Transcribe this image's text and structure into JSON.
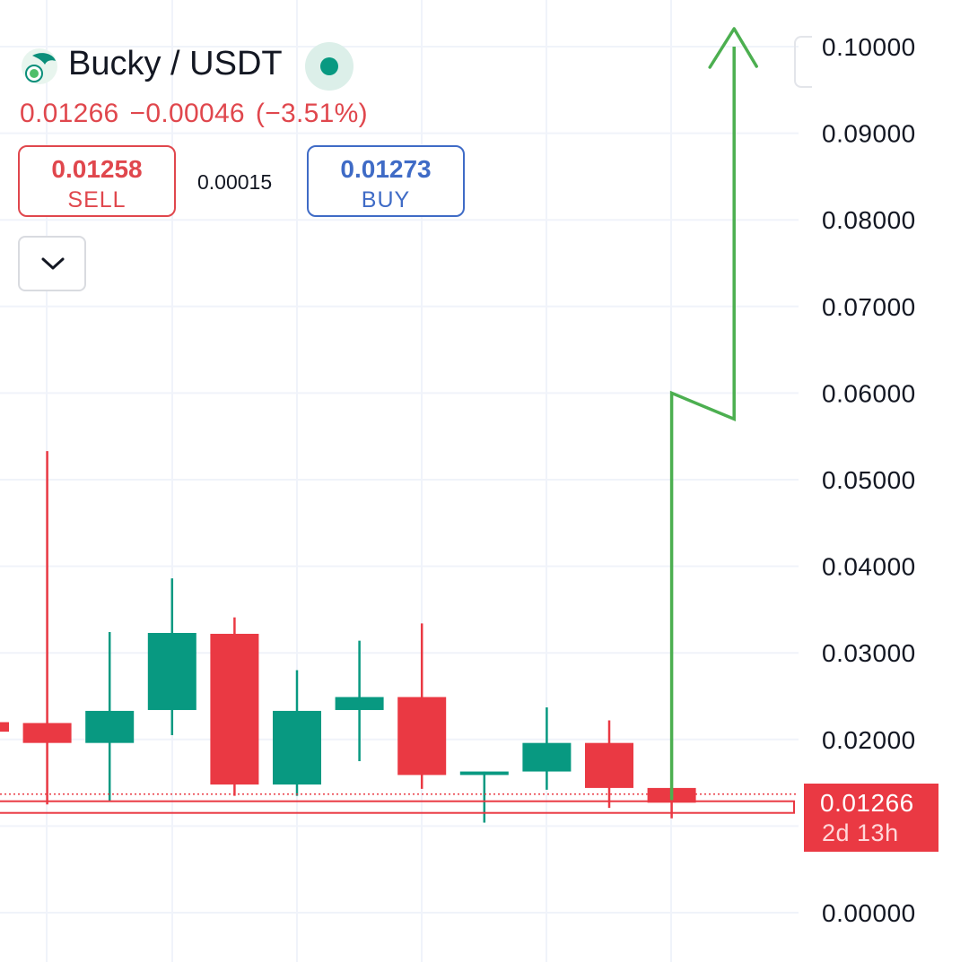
{
  "header": {
    "pair": "Bucky / USDT",
    "last_price": "0.01266",
    "change": "−0.00046",
    "change_pct": "(−3.51%)",
    "sell_price": "0.01258",
    "sell_label": "SELL",
    "spread": "0.00015",
    "buy_price": "0.01273",
    "buy_label": "BUY",
    "logo_icon": "bucky-logo-icon",
    "status_icon": "market-open-dot-icon",
    "dropdown_icon": "chevron-down-icon"
  },
  "price_tag": {
    "price": "0.01266",
    "countdown": "2d 13h"
  },
  "colors": {
    "up": "#089981",
    "down": "#ea3943",
    "arrow": "#4caf50",
    "grid": "#f0f3fa"
  },
  "chart_data": {
    "type": "candlestick",
    "ylim": [
      0,
      0.1
    ],
    "y_ticks": [
      "0.10000",
      "0.09000",
      "0.08000",
      "0.07000",
      "0.06000",
      "0.05000",
      "0.04000",
      "0.03000",
      "0.02000",
      "0.00000"
    ],
    "grid": true,
    "current_price": 0.01266,
    "candles": [
      {
        "open": 0.022,
        "close": 0.0209,
        "high": 0.022,
        "low": 0.0209,
        "partial": true
      },
      {
        "open": 0.0219,
        "close": 0.0196,
        "high": 0.0533,
        "low": 0.0125
      },
      {
        "open": 0.0196,
        "close": 0.0233,
        "high": 0.0324,
        "low": 0.0128
      },
      {
        "open": 0.0234,
        "close": 0.0323,
        "high": 0.0386,
        "low": 0.0205
      },
      {
        "open": 0.0322,
        "close": 0.0148,
        "high": 0.0341,
        "low": 0.0135
      },
      {
        "open": 0.0148,
        "close": 0.0233,
        "high": 0.028,
        "low": 0.0135
      },
      {
        "open": 0.0234,
        "close": 0.0249,
        "high": 0.0314,
        "low": 0.0175
      },
      {
        "open": 0.0249,
        "close": 0.0159,
        "high": 0.0334,
        "low": 0.0143
      },
      {
        "open": 0.0159,
        "close": 0.0163,
        "high": 0.0163,
        "low": 0.0104
      },
      {
        "open": 0.0163,
        "close": 0.0196,
        "high": 0.0237,
        "low": 0.0142
      },
      {
        "open": 0.0196,
        "close": 0.0144,
        "high": 0.0222,
        "low": 0.0121
      },
      {
        "open": 0.0144,
        "close": 0.0127,
        "high": 0.0175,
        "low": 0.0109
      }
    ],
    "annotation": {
      "type": "arrow",
      "color": "#4caf50",
      "points": [
        [
          11,
          0.013
        ],
        [
          11,
          0.06
        ],
        [
          12,
          0.057
        ],
        [
          12,
          0.1
        ]
      ]
    }
  }
}
